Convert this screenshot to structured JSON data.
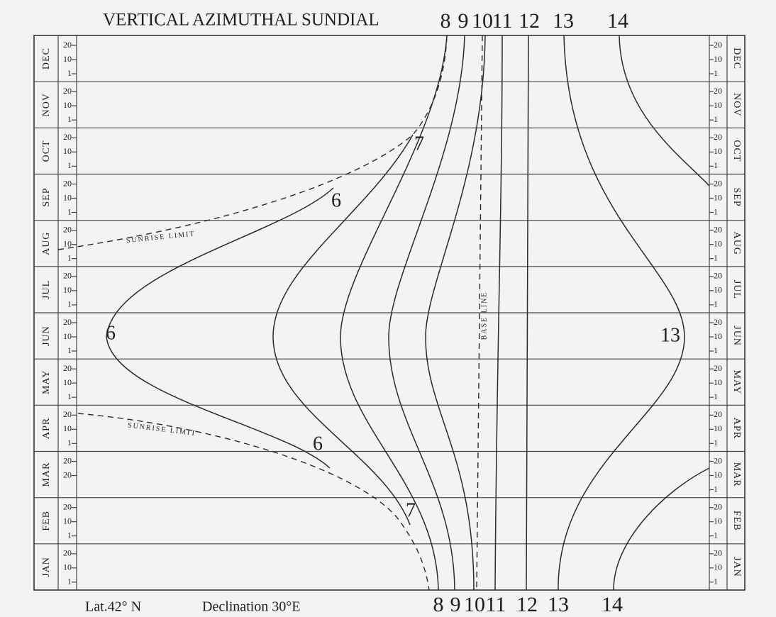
{
  "title": "VERTICAL AZIMUTHAL SUNDIAL",
  "hours_top": [
    8,
    9,
    10,
    11,
    12,
    13,
    14
  ],
  "hours_bottom": [
    8,
    9,
    10,
    11,
    12,
    13,
    14
  ],
  "left_scale": [
    {
      "month": "DEC",
      "days": [
        20,
        10,
        1
      ]
    },
    {
      "month": "NOV",
      "days": [
        20,
        10,
        1
      ]
    },
    {
      "month": "OCT",
      "days": [
        20,
        10,
        1
      ]
    },
    {
      "month": "SEP",
      "days": [
        20,
        10,
        1
      ]
    },
    {
      "month": "AUG",
      "days": [
        20,
        10,
        1
      ]
    },
    {
      "month": "JUL",
      "days": [
        20,
        10,
        1
      ]
    },
    {
      "month": "JUN",
      "days": [
        20,
        10,
        1
      ]
    },
    {
      "month": "MAY",
      "days": [
        20,
        10,
        1
      ]
    },
    {
      "month": "APR",
      "days": [
        20,
        10,
        1
      ]
    },
    {
      "month": "MAR",
      "days": [
        20,
        20
      ]
    },
    {
      "month": "FEB",
      "days": [
        20,
        10,
        1
      ]
    },
    {
      "month": "JAN",
      "days": [
        20,
        10,
        1
      ]
    }
  ],
  "right_scale": [
    {
      "month": "DEC",
      "days": [
        20,
        10,
        1
      ]
    },
    {
      "month": "NOV",
      "days": [
        20,
        10,
        1
      ]
    },
    {
      "month": "OCT",
      "days": [
        20,
        10,
        1
      ]
    },
    {
      "month": "SEP",
      "days": [
        20,
        10,
        1
      ]
    },
    {
      "month": "AUG",
      "days": [
        20,
        10,
        1
      ]
    },
    {
      "month": "JUL",
      "days": [
        20,
        10,
        1
      ]
    },
    {
      "month": "JUN",
      "days": [
        20,
        10,
        1
      ]
    },
    {
      "month": "MAY",
      "days": [
        20,
        10,
        1
      ]
    },
    {
      "month": "APR",
      "days": [
        20,
        10,
        1
      ]
    },
    {
      "month": "MAR",
      "days": [
        20,
        10,
        1
      ]
    },
    {
      "month": "FEB",
      "days": [
        20,
        10,
        1
      ]
    },
    {
      "month": "JAN",
      "days": [
        20,
        10,
        1
      ]
    }
  ],
  "curve_labels": [
    7,
    6,
    6,
    13,
    6,
    7
  ],
  "annotations": [
    "SUNRISE LIMIT",
    "SUNRISE LIMIT",
    "BASE LINE"
  ],
  "footer": {
    "latitude": "Lat.42° N",
    "declination": "Declination 30°E"
  }
}
